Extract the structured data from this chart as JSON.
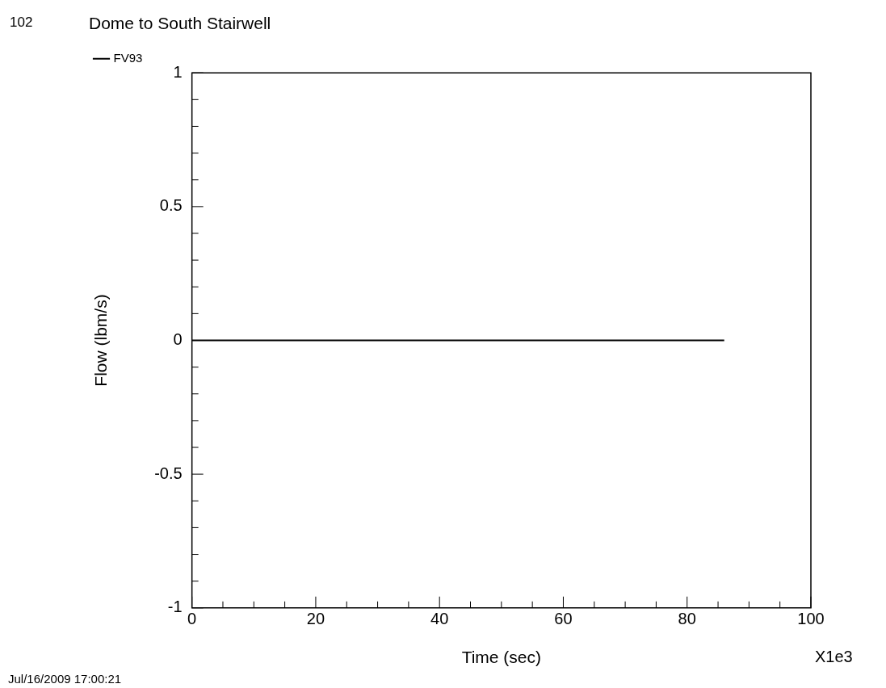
{
  "chart_data": {
    "type": "line",
    "title": "Dome to South Stairwell",
    "xlabel": "Time (sec)",
    "ylabel": "Flow (lbm/s)",
    "annotations": [
      "102",
      "X1e3",
      "Jul/16/2009 17:00:21"
    ],
    "series": [
      {
        "name": "FV93",
        "color": "#000000",
        "x": [
          0,
          86
        ],
        "values": [
          0,
          0
        ]
      }
    ],
    "xlim": [
      0,
      100
    ],
    "xticks": [
      0,
      {
        "value": 5,
        "label": null
      },
      {
        "value": 10,
        "label": null
      },
      {
        "value": 15,
        "label": null
      },
      20,
      {
        "value": 25,
        "label": null
      },
      {
        "value": 30,
        "label": null
      },
      {
        "value": 35,
        "label": null
      },
      40,
      {
        "value": 45,
        "label": null
      },
      {
        "value": 50,
        "label": null
      },
      {
        "value": 55,
        "label": null
      },
      60,
      {
        "value": 65,
        "label": null
      },
      {
        "value": 70,
        "label": null
      },
      {
        "value": 75,
        "label": null
      },
      80,
      {
        "value": 85,
        "label": null
      },
      {
        "value": 90,
        "label": null
      },
      {
        "value": 95,
        "label": null
      },
      100
    ],
    "ylim": [
      -1,
      1
    ],
    "yticks": [
      -1,
      {
        "value": -0.9,
        "label": null
      },
      {
        "value": -0.8,
        "label": null
      },
      {
        "value": -0.7,
        "label": null
      },
      {
        "value": -0.6,
        "label": null
      },
      -0.5,
      {
        "value": -0.4,
        "label": null
      },
      {
        "value": -0.3,
        "label": null
      },
      {
        "value": -0.2,
        "label": null
      },
      {
        "value": -0.1,
        "label": null
      },
      0,
      {
        "value": 0.1,
        "label": null
      },
      {
        "value": 0.2,
        "label": null
      },
      {
        "value": 0.3,
        "label": null
      },
      {
        "value": 0.4,
        "label": null
      },
      0.5,
      {
        "value": 0.6,
        "label": null
      },
      {
        "value": 0.7,
        "label": null
      },
      {
        "value": 0.8,
        "label": null
      },
      {
        "value": 0.9,
        "label": null
      },
      1
    ],
    "grid": false,
    "legend": "top left",
    "marker": "none",
    "line_style": "solid"
  }
}
